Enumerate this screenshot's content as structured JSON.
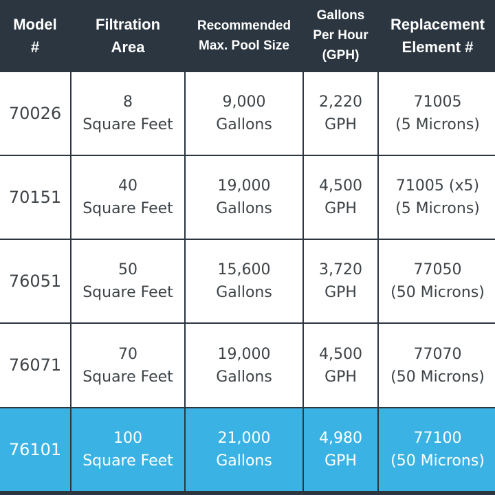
{
  "colors": {
    "header_bg": "#2b3640",
    "header_text": "#ffffff",
    "body_text": "#3d4347",
    "highlight_bg": "#3ab3e4",
    "border": "#2b3640"
  },
  "table": {
    "headers": [
      [
        "Model",
        "#"
      ],
      [
        "Filtration",
        "Area"
      ],
      [
        "Recommended",
        "Max. Pool Size"
      ],
      [
        "Gallons",
        "Per Hour",
        "(GPH)"
      ],
      [
        "Replacement",
        "Element #"
      ]
    ],
    "rows": [
      {
        "model": "70026",
        "area": [
          "8",
          "Square Feet"
        ],
        "pool": [
          "9,000",
          "Gallons"
        ],
        "gph": [
          "2,220",
          "GPH"
        ],
        "element": [
          "71005",
          "(5 Microns)"
        ]
      },
      {
        "model": "70151",
        "area": [
          "40",
          "Square Feet"
        ],
        "pool": [
          "19,000",
          "Gallons"
        ],
        "gph": [
          "4,500",
          "GPH"
        ],
        "element": [
          "71005 (x5)",
          "(5 Microns)"
        ]
      },
      {
        "model": "76051",
        "area": [
          "50",
          "Square Feet"
        ],
        "pool": [
          "15,600",
          "Gallons"
        ],
        "gph": [
          "3,720",
          "GPH"
        ],
        "element": [
          "77050",
          "(50 Microns)"
        ]
      },
      {
        "model": "76071",
        "area": [
          "70",
          "Square Feet"
        ],
        "pool": [
          "19,000",
          "Gallons"
        ],
        "gph": [
          "4,500",
          "GPH"
        ],
        "element": [
          "77070",
          "(50 Microns)"
        ]
      },
      {
        "model": "76101",
        "area": [
          "100",
          "Square Feet"
        ],
        "pool": [
          "21,000",
          "Gallons"
        ],
        "gph": [
          "4,980",
          "GPH"
        ],
        "element": [
          "77100",
          "(50 Microns)"
        ],
        "highlighted": true
      }
    ]
  }
}
